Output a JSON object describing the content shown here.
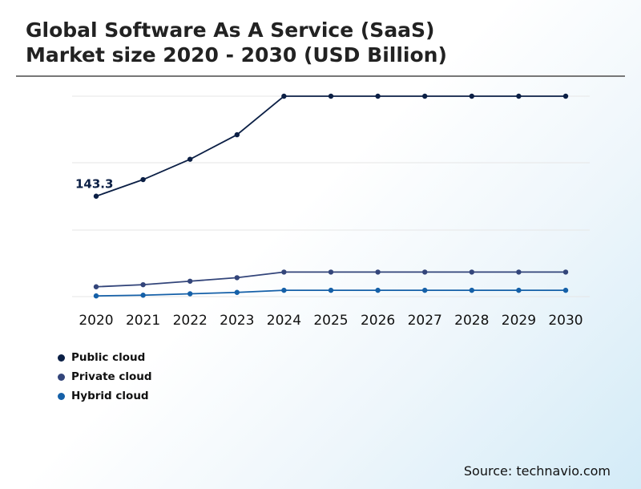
{
  "title_line1": "Global Software As A Service (SaaS)",
  "title_line2": "Market size 2020 - 2030 (USD Billion)",
  "source": "Source: technavio.com",
  "chart_data": {
    "type": "line",
    "title": "Global Software As A Service (SaaS) Market size 2020 - 2030 (USD Billion)",
    "xlabel": "",
    "ylabel": "",
    "x": [
      "2020",
      "2021",
      "2022",
      "2023",
      "2024",
      "2025",
      "2026",
      "2027",
      "2028",
      "2029",
      "2030"
    ],
    "ylim": [
      0,
      300
    ],
    "grid": true,
    "legend_position": "bottom-left",
    "series": [
      {
        "name": "Public cloud",
        "color": "#0b1f45",
        "values": [
          143.3,
          167,
          196,
          231,
          286,
          286,
          286,
          286,
          286,
          286,
          286
        ]
      },
      {
        "name": "Private cloud",
        "color": "#33457a",
        "values": [
          14,
          17,
          22,
          27,
          35,
          35,
          35,
          35,
          35,
          35,
          35
        ]
      },
      {
        "name": "Hybrid cloud",
        "color": "#1560a8",
        "values": [
          1,
          2,
          4,
          6,
          9,
          9,
          9,
          9,
          9,
          9,
          9
        ]
      }
    ],
    "annotations": [
      {
        "series": 0,
        "index": 0,
        "text": "143.3"
      }
    ]
  }
}
